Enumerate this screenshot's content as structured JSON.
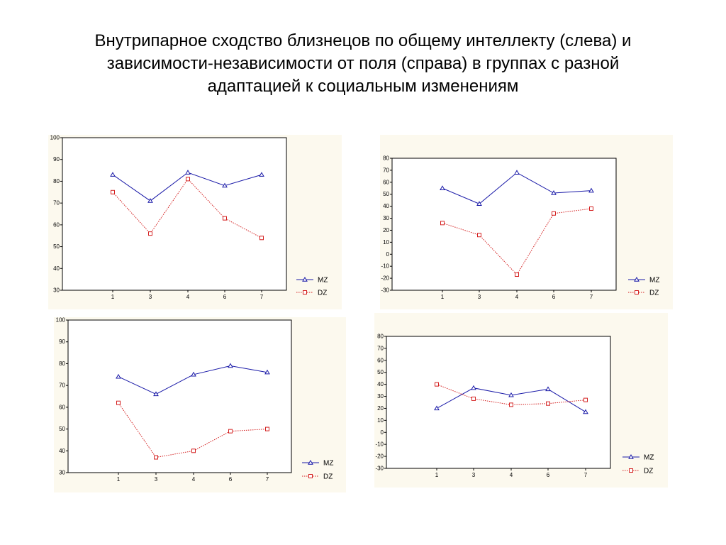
{
  "title_lines": [
    "Внутрипарное сходство близнецов по общему интеллекту (слева) и",
    "зависимости-независимости от поля (справа) в группах с разной",
    "адаптацией к социальным изменениям"
  ],
  "colors": {
    "panel_bg": "#fcf9ee",
    "plot_bg": "#ffffff",
    "mz": "#1a1aa8",
    "dz": "#d42020"
  },
  "chart_data": [
    {
      "type": "line",
      "categories": [
        "1",
        "3",
        "4",
        "6",
        "7"
      ],
      "ylim": [
        30,
        100
      ],
      "yticks": [
        "100",
        "90",
        "80",
        "70",
        "60",
        "50",
        "40",
        "30"
      ],
      "series": [
        {
          "name": "MZ",
          "marker": "triangle",
          "style": "solid",
          "values": [
            83,
            71,
            84,
            78,
            83
          ]
        },
        {
          "name": "DZ",
          "marker": "square",
          "style": "dotted",
          "values": [
            75,
            56,
            81,
            63,
            54
          ]
        }
      ],
      "legend": "bottom-right",
      "grid": false
    },
    {
      "type": "line",
      "categories": [
        "1",
        "3",
        "4",
        "6",
        "7"
      ],
      "ylim": [
        -30,
        80
      ],
      "yticks": [
        "80",
        "70",
        "60",
        "50",
        "40",
        "30",
        "20",
        "10",
        "0",
        "-10",
        "-20",
        "-30"
      ],
      "series": [
        {
          "name": "MZ",
          "marker": "triangle",
          "style": "solid",
          "values": [
            55,
            42,
            68,
            51,
            53
          ]
        },
        {
          "name": "DZ",
          "marker": "square",
          "style": "dotted",
          "values": [
            26,
            16,
            -17,
            34,
            38
          ]
        }
      ],
      "legend": "bottom-right",
      "grid": false
    },
    {
      "type": "line",
      "categories": [
        "1",
        "3",
        "4",
        "6",
        "7"
      ],
      "ylim": [
        30,
        100
      ],
      "yticks": [
        "100",
        "90",
        "80",
        "70",
        "60",
        "50",
        "40",
        "30"
      ],
      "series": [
        {
          "name": "MZ",
          "marker": "triangle",
          "style": "solid",
          "values": [
            74,
            66,
            75,
            79,
            76
          ]
        },
        {
          "name": "DZ",
          "marker": "square",
          "style": "dotted",
          "values": [
            62,
            37,
            40,
            49,
            50
          ]
        }
      ],
      "legend": "bottom-right",
      "grid": false
    },
    {
      "type": "line",
      "categories": [
        "1",
        "3",
        "4",
        "6",
        "7"
      ],
      "ylim": [
        -30,
        80
      ],
      "yticks": [
        "80",
        "70",
        "60",
        "50",
        "40",
        "30",
        "20",
        "10",
        "0",
        "-10",
        "-20",
        "-30"
      ],
      "series": [
        {
          "name": "MZ",
          "marker": "triangle",
          "style": "solid",
          "values": [
            20,
            37,
            31,
            36,
            17
          ]
        },
        {
          "name": "DZ",
          "marker": "square",
          "style": "dotted",
          "values": [
            40,
            28,
            23,
            24,
            27
          ]
        }
      ],
      "legend": "bottom-right",
      "grid": false
    }
  ]
}
